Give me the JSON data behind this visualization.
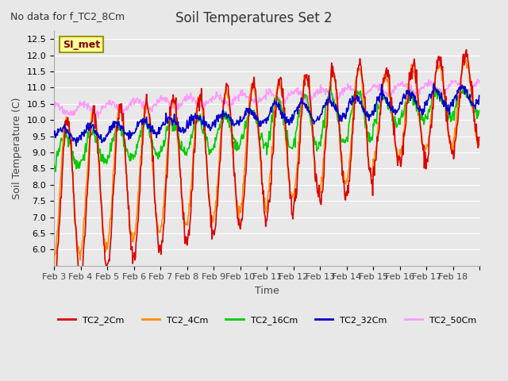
{
  "title": "Soil Temperatures Set 2",
  "subtitle": "No data for f_TC2_8Cm",
  "xlabel": "Time",
  "ylabel": "Soil Temperature (C)",
  "ylim": [
    5.5,
    12.75
  ],
  "yticks": [
    6.0,
    6.5,
    7.0,
    7.5,
    8.0,
    8.5,
    9.0,
    9.5,
    10.0,
    10.5,
    11.0,
    11.5,
    12.0,
    12.5
  ],
  "date_labels": [
    "Feb 3",
    "Feb 4",
    "Feb 5",
    "Feb 6",
    "Feb 7",
    "Feb 8",
    "Feb 9",
    "Feb 10",
    "Feb 11",
    "Feb 12",
    "Feb 13",
    "Feb 14",
    "Feb 15",
    "Feb 16",
    "Feb 17",
    "Feb 18"
  ],
  "n_days": 16,
  "colors": {
    "TC2_2Cm": "#dd0000",
    "TC2_4Cm": "#ff8c00",
    "TC2_16Cm": "#00cc00",
    "TC2_32Cm": "#0000cc",
    "TC2_50Cm": "#ff99ff"
  },
  "legend_labels": [
    "TC2_2Cm",
    "TC2_4Cm",
    "TC2_16Cm",
    "TC2_32Cm",
    "TC2_50Cm"
  ],
  "bg_color": "#e8e8e8",
  "plot_bg_color": "#e8e8e8",
  "grid_color": "#ffffff",
  "annotation_text": "SI_met",
  "annotation_bg": "#ffff99",
  "annotation_border": "#999900",
  "line_width": 1.2,
  "points_per_day": 48
}
